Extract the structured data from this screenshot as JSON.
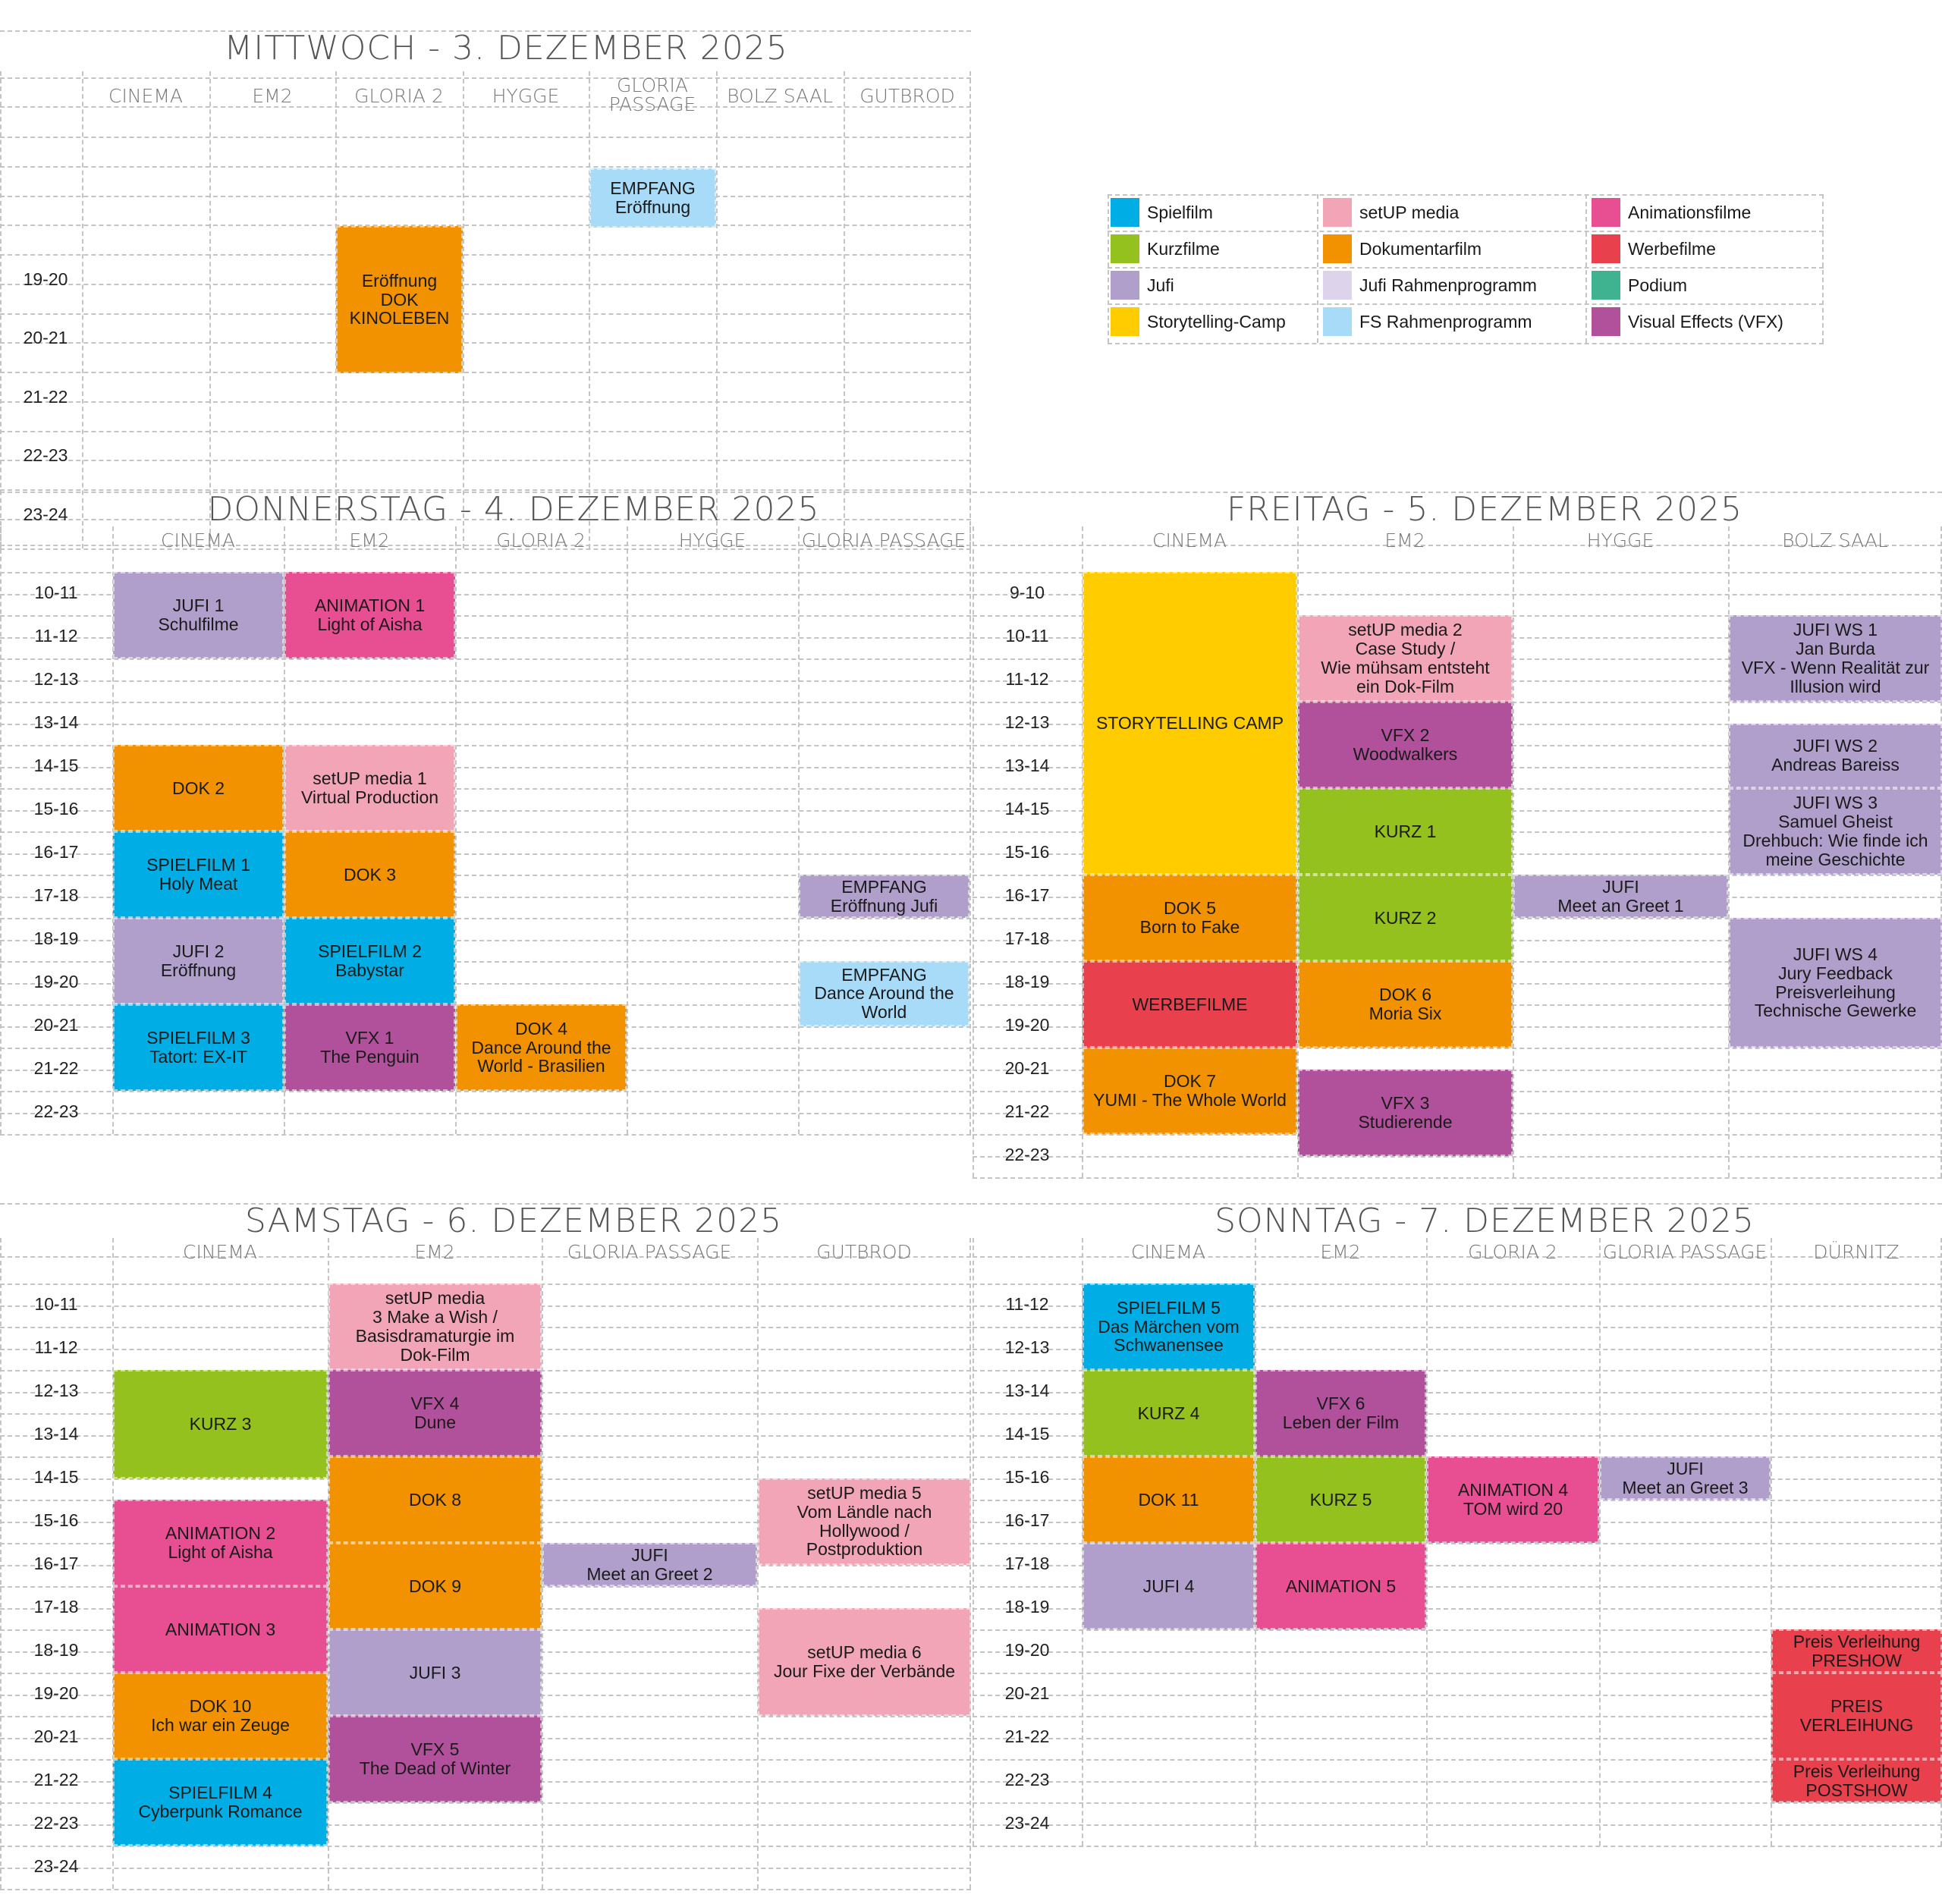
{
  "legend": [
    {
      "color": "#00aee5",
      "label": "Spielfilm"
    },
    {
      "color": "#f2a5b6",
      "label": "setUP media"
    },
    {
      "color": "#e84e92",
      "label": "Animationsfilme"
    },
    {
      "color": "#95c11f",
      "label": "Kurzfilme"
    },
    {
      "color": "#f39200",
      "label": "Dokumentarfilm"
    },
    {
      "color": "#e8414d",
      "label": "Werbefilme"
    },
    {
      "color": "#b19fcb",
      "label": "Jufi"
    },
    {
      "color": "#ddd3ea",
      "label": "Jufi Rahmenprogramm"
    },
    {
      "color": "#3fb28f",
      "label": "Podium"
    },
    {
      "color": "#ffcc00",
      "label": "Storytelling-Camp"
    },
    {
      "color": "#a7dbf7",
      "label": "FS Rahmenprogramm"
    },
    {
      "color": "#b2519b",
      "label": "Visual Effects (VFX)"
    }
  ],
  "days": [
    {
      "title": "MITTWOCH  - 3. DEZEMBER 2025",
      "columns": [
        "CINEMA",
        "EM2",
        "GLORIA 2",
        "HYGGE",
        "GLORIA\nPASSAGE",
        "BOLZ SAAL",
        "GUTBROD"
      ],
      "times": [
        "",
        "",
        "19-20",
        "20-21",
        "21-22",
        "22-23",
        "23-24"
      ],
      "events": [
        {
          "label": "EMPFANG\nEröffnung",
          "category": "FS Rahmenprogramm"
        },
        {
          "label": "Eröffnung\nDOK\nKINOLEBEN",
          "category": "Dokumentarfilm"
        }
      ]
    },
    {
      "title": "DONNERSTAG  -  4. DEZEMBER 2025",
      "columns": [
        "CINEMA",
        "EM2",
        "GLORIA 2",
        "HYGGE",
        "GLORIA PASSAGE"
      ],
      "times": [
        "10-11",
        "11-12",
        "12-13",
        "13-14",
        "14-15",
        "15-16",
        "16-17",
        "17-18",
        "18-19",
        "19-20",
        "20-21",
        "21-22",
        "22-23"
      ],
      "events": [
        {
          "label": "JUFI 1\nSchulfilme",
          "category": "Jufi"
        },
        {
          "label": "ANIMATION 1\nLight of Aisha",
          "category": "Animationsfilme"
        },
        {
          "label": "DOK 2",
          "category": "Dokumentarfilm"
        },
        {
          "label": "setUP media 1\nVirtual Production",
          "category": "setUP media"
        },
        {
          "label": "SPIELFILM 1\nHoly Meat",
          "category": "Spielfilm"
        },
        {
          "label": "DOK 3",
          "category": "Dokumentarfilm"
        },
        {
          "label": "EMPFANG\nEröffnung Jufi",
          "category": "Jufi"
        },
        {
          "label": "JUFI 2\nEröffnung",
          "category": "Jufi"
        },
        {
          "label": "SPIELFILM 2\nBabystar",
          "category": "Spielfilm"
        },
        {
          "label": "EMPFANG\nDance Around the\nWorld",
          "category": "FS Rahmenprogramm"
        },
        {
          "label": "SPIELFILM 3\nTatort: EX-IT",
          "category": "Spielfilm"
        },
        {
          "label": "VFX 1\nThe Penguin",
          "category": "Visual Effects (VFX)"
        },
        {
          "label": "DOK 4\nDance Around the\nWorld - Brasilien",
          "category": "Dokumentarfilm"
        }
      ]
    },
    {
      "title": "FREITAG  -  5. DEZEMBER 2025",
      "columns": [
        "CINEMA",
        "EM2",
        "HYGGE",
        "BOLZ SAAL"
      ],
      "times": [
        "9-10",
        "10-11",
        "11-12",
        "12-13",
        "13-14",
        "14-15",
        "15-16",
        "16-17",
        "17-18",
        "18-19",
        "19-20",
        "20-21",
        "21-22",
        "22-23"
      ],
      "events": [
        {
          "label": "STORYTELLING CAMP",
          "category": "Storytelling-Camp"
        },
        {
          "label": "setUP media 2\nCase Study /\nWie mühsam entsteht\nein Dok-Film",
          "category": "setUP media"
        },
        {
          "label": "JUFI WS 1\nJan Burda\nVFX - Wenn Realität zur\nIllusion wird",
          "category": "Jufi"
        },
        {
          "label": "VFX 2\nWoodwalkers",
          "category": "Visual Effects (VFX)"
        },
        {
          "label": "JUFI WS 2\nAndreas Bareiss",
          "category": "Jufi"
        },
        {
          "label": "KURZ 1",
          "category": "Kurzfilme"
        },
        {
          "label": "JUFI WS 3\nSamuel Gheist\nDrehbuch: Wie finde ich\nmeine Geschichte",
          "category": "Jufi"
        },
        {
          "label": "DOK 5\nBorn to Fake",
          "category": "Dokumentarfilm"
        },
        {
          "label": "KURZ 2",
          "category": "Kurzfilme"
        },
        {
          "label": "JUFI\nMeet an Greet 1",
          "category": "Jufi"
        },
        {
          "label": "JUFI WS 4\nJury Feedback\nPreisverleihung\nTechnische Gewerke",
          "category": "Jufi"
        },
        {
          "label": "WERBEFILME",
          "category": "Werbefilme"
        },
        {
          "label": "DOK 6\nMoria Six",
          "category": "Dokumentarfilm"
        },
        {
          "label": "DOK 7\nYUMI - The Whole World",
          "category": "Dokumentarfilm"
        },
        {
          "label": "VFX 3\nStudierende",
          "category": "Visual Effects (VFX)"
        }
      ]
    },
    {
      "title": "SAMSTAG  -  6. DEZEMBER 2025",
      "columns": [
        "CINEMA",
        "EM2",
        "GLORIA PASSAGE",
        "GUTBROD"
      ],
      "times": [
        "10-11",
        "11-12",
        "12-13",
        "13-14",
        "14-15",
        "15-16",
        "16-17",
        "17-18",
        "18-19",
        "19-20",
        "20-21",
        "21-22",
        "22-23",
        "23-24"
      ],
      "events": [
        {
          "label": "setUP media\n3        Make a Wish /\nBasisdramaturgie im\nDok-Film",
          "category": "setUP media"
        },
        {
          "label": "KURZ 3",
          "category": "Kurzfilme"
        },
        {
          "label": "VFX 4\nDune",
          "category": "Visual Effects (VFX)"
        },
        {
          "label": "DOK 8",
          "category": "Dokumentarfilm"
        },
        {
          "label": "setUP media 5\nVom Ländle nach\nHollywood /\nPostproduktion",
          "category": "setUP media"
        },
        {
          "label": "ANIMATION 2\nLight of Aisha",
          "category": "Animationsfilme"
        },
        {
          "label": "JUFI\nMeet an Greet 2",
          "category": "Jufi"
        },
        {
          "label": "DOK 9",
          "category": "Dokumentarfilm"
        },
        {
          "label": "ANIMATION 3",
          "category": "Animationsfilme"
        },
        {
          "label": "setUP media 6\nJour Fixe der Verbände",
          "category": "setUP media"
        },
        {
          "label": "JUFI 3",
          "category": "Jufi"
        },
        {
          "label": "DOK 10\nIch war ein Zeuge",
          "category": "Dokumentarfilm"
        },
        {
          "label": "VFX 5\nThe Dead of Winter",
          "category": "Visual Effects (VFX)"
        },
        {
          "label": "SPIELFILM 4\nCyberpunk Romance",
          "category": "Spielfilm"
        }
      ]
    },
    {
      "title": "SONNTAG  -  7. DEZEMBER 2025",
      "columns": [
        "CINEMA",
        "EM2",
        "GLORIA 2",
        "GLORIA PASSAGE",
        "DÜRNITZ"
      ],
      "times": [
        "11-12",
        "12-13",
        "13-14",
        "14-15",
        "15-16",
        "16-17",
        "17-18",
        "18-19",
        "19-20",
        "20-21",
        "21-22",
        "22-23",
        "23-24"
      ],
      "events": [
        {
          "label": "SPIELFILM 5\nDas Märchen vom\nSchwanensee",
          "category": "Spielfilm"
        },
        {
          "label": "KURZ 4",
          "category": "Kurzfilme"
        },
        {
          "label": "VFX 6\nLeben der Film",
          "category": "Visual Effects (VFX)"
        },
        {
          "label": "DOK 11",
          "category": "Dokumentarfilm"
        },
        {
          "label": "KURZ 5",
          "category": "Kurzfilme"
        },
        {
          "label": "ANIMATION 4\nTOM wird 20",
          "category": "Animationsfilme"
        },
        {
          "label": "JUFI\nMeet an Greet 3",
          "category": "Jufi"
        },
        {
          "label": "JUFI 4",
          "category": "Jufi"
        },
        {
          "label": "ANIMATION 5",
          "category": "Animationsfilme"
        },
        {
          "label": "Preis Verleihung\nPRESHOW",
          "category": "Werbefilme"
        },
        {
          "label": "PREIS\nVERLEIHUNG",
          "category": "Werbefilme"
        },
        {
          "label": "Preis Verleihung\nPOSTSHOW",
          "category": "Werbefilme"
        }
      ]
    }
  ]
}
